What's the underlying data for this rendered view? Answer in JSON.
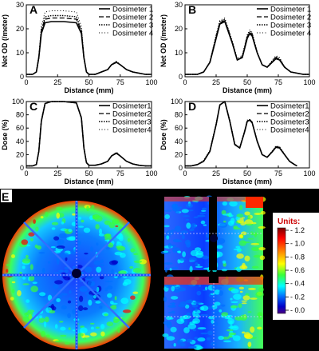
{
  "chart_data": [
    {
      "type": "line",
      "panel": "A",
      "xlabel": "Distance (mm)",
      "ylabel": "Net OD (/meter)",
      "xlim": [
        0,
        100
      ],
      "ylim": [
        0,
        30
      ],
      "xticks": [
        "0",
        "25",
        "50",
        "75",
        "100"
      ],
      "yticks": [
        "0",
        "10",
        "20",
        "30"
      ],
      "legend_position": "top-right",
      "series": [
        {
          "name": "Dosimeter 1",
          "style": "solid",
          "x": [
            0,
            5,
            8,
            10,
            12,
            15,
            20,
            30,
            40,
            44,
            46,
            48,
            50,
            55,
            60,
            65,
            68,
            72,
            75,
            80,
            85,
            90,
            95,
            100
          ],
          "y": [
            1,
            1,
            2,
            8,
            18,
            22.5,
            23,
            23,
            22.5,
            18,
            8,
            2,
            1,
            1,
            2,
            3,
            5,
            6,
            5,
            3,
            2,
            1.5,
            1,
            1
          ]
        },
        {
          "name": "Dosimeter 2",
          "style": "dashed",
          "x": [
            0,
            5,
            8,
            10,
            12,
            15,
            20,
            30,
            40,
            44,
            46,
            48,
            50,
            55,
            60,
            65,
            68,
            72,
            75,
            80,
            85,
            90,
            95,
            100
          ],
          "y": [
            1,
            1,
            2,
            8,
            19,
            24,
            24.5,
            24.5,
            24,
            19,
            8,
            2,
            1,
            1,
            2,
            3,
            5,
            6.2,
            5,
            3,
            2,
            1.5,
            1,
            1
          ]
        },
        {
          "name": "Dosimeter 3",
          "style": "dotted-dense",
          "x": [
            0,
            5,
            8,
            10,
            12,
            15,
            20,
            30,
            40,
            44,
            46,
            48,
            50,
            55,
            60,
            65,
            68,
            72,
            75,
            80,
            85,
            90,
            95,
            100
          ],
          "y": [
            1,
            1,
            2,
            8,
            19.5,
            25,
            25.5,
            25.5,
            25,
            19.5,
            8,
            2,
            1,
            1,
            2,
            3,
            5,
            6.3,
            5,
            3,
            2,
            1.5,
            1,
            1
          ]
        },
        {
          "name": "Dosimeter 4",
          "style": "dotted-sparse",
          "x": [
            0,
            5,
            8,
            10,
            12,
            15,
            20,
            30,
            40,
            44,
            46,
            48,
            50,
            55,
            60,
            65,
            68,
            72,
            75,
            80,
            85,
            90,
            95,
            100
          ],
          "y": [
            1,
            1,
            2,
            9,
            21,
            27,
            27.5,
            27.5,
            27,
            21,
            9,
            2,
            1,
            1,
            2,
            3,
            5,
            6.5,
            5,
            3,
            2,
            1.5,
            1,
            1
          ]
        }
      ]
    },
    {
      "type": "line",
      "panel": "B",
      "xlabel": "Distance (mm)",
      "ylabel": "Net OD (/meter)",
      "xlim": [
        0,
        100
      ],
      "ylim": [
        0,
        30
      ],
      "xticks": [
        "0",
        "25",
        "50",
        "75",
        "100"
      ],
      "yticks": [
        "0",
        "10",
        "20",
        "30"
      ],
      "legend_position": "top-right",
      "series": [
        {
          "name": "Dosimeter 1",
          "style": "solid",
          "x": [
            0,
            10,
            15,
            20,
            25,
            28,
            32,
            38,
            42,
            46,
            50,
            52,
            54,
            58,
            62,
            66,
            70,
            73,
            76,
            80,
            85,
            90,
            95,
            100
          ],
          "y": [
            1,
            1,
            2,
            6,
            16,
            22,
            23,
            14,
            7,
            8,
            16,
            18,
            17,
            10,
            5,
            4,
            6,
            7.5,
            7,
            4,
            2,
            1.5,
            1,
            1
          ]
        },
        {
          "name": "Dosimeter 2",
          "style": "dashed",
          "x": [
            0,
            10,
            15,
            20,
            25,
            28,
            32,
            38,
            42,
            46,
            50,
            52,
            54,
            58,
            62,
            66,
            70,
            73,
            76,
            80,
            85,
            90,
            95,
            100
          ],
          "y": [
            1,
            1,
            2,
            6,
            16.5,
            22.5,
            23.5,
            14,
            7,
            8,
            16.5,
            18.5,
            17.5,
            10,
            5,
            4,
            6.2,
            8,
            7.2,
            4,
            2,
            1.5,
            1,
            1
          ]
        },
        {
          "name": "Dosimeter 3",
          "style": "dotted-dense",
          "x": [
            0,
            10,
            15,
            20,
            25,
            28,
            32,
            38,
            42,
            46,
            50,
            52,
            54,
            58,
            62,
            66,
            70,
            73,
            76,
            80,
            85,
            90,
            95,
            100
          ],
          "y": [
            1,
            1,
            2,
            6,
            17,
            23,
            24,
            14.5,
            7,
            8.5,
            17,
            19,
            18,
            10,
            5,
            4,
            6.5,
            8.3,
            7.5,
            4,
            2,
            1.5,
            1,
            1
          ]
        },
        {
          "name": "Dosimeter 4",
          "style": "dotted-sparse",
          "x": [
            0,
            10,
            15,
            20,
            25,
            28,
            32,
            38,
            42,
            46,
            50,
            52,
            54,
            58,
            62,
            66,
            70,
            73,
            76,
            80,
            85,
            90,
            95,
            100
          ],
          "y": [
            1,
            1,
            2,
            6.5,
            17.5,
            23.5,
            24.5,
            15,
            7.5,
            9,
            17.5,
            19.5,
            18.5,
            10.5,
            5,
            4,
            6.8,
            8.8,
            8,
            4.2,
            2,
            1.5,
            1,
            1
          ]
        }
      ]
    },
    {
      "type": "line",
      "panel": "C",
      "xlabel": "Distance (mm)",
      "ylabel": "Dose (%)",
      "xlim": [
        0,
        100
      ],
      "ylim": [
        0,
        100
      ],
      "xticks": [
        "0",
        "25",
        "50",
        "75",
        "100"
      ],
      "yticks": [
        "0",
        "20",
        "40",
        "60",
        "80",
        "100"
      ],
      "legend_position": "top-right",
      "series": [
        {
          "name": "Dosimeter1",
          "style": "solid",
          "x": [
            0,
            5,
            8,
            10,
            12,
            15,
            20,
            30,
            40,
            44,
            46,
            48,
            50,
            55,
            60,
            65,
            68,
            72,
            75,
            80,
            85,
            90,
            95,
            100
          ],
          "y": [
            3,
            3,
            5,
            25,
            70,
            97,
            100,
            100,
            98,
            75,
            30,
            8,
            4,
            4,
            6,
            10,
            18,
            22,
            18,
            10,
            6,
            4,
            3,
            3
          ]
        },
        {
          "name": "Dosimeter2",
          "style": "dashed",
          "x": [
            0,
            5,
            8,
            10,
            12,
            15,
            20,
            30,
            40,
            44,
            46,
            48,
            50,
            55,
            60,
            65,
            68,
            72,
            75,
            80,
            85,
            90,
            95,
            100
          ],
          "y": [
            3,
            3,
            5,
            25,
            70,
            97,
            100,
            100,
            98,
            75,
            30,
            8,
            4,
            4,
            6,
            10,
            18,
            23,
            18,
            10,
            6,
            4,
            3,
            3
          ]
        },
        {
          "name": "Dosimeter3",
          "style": "dotted-dense",
          "x": [
            0,
            5,
            8,
            10,
            12,
            15,
            20,
            30,
            40,
            44,
            46,
            48,
            50,
            55,
            60,
            65,
            68,
            72,
            75,
            80,
            85,
            90,
            95,
            100
          ],
          "y": [
            3,
            3,
            5,
            26,
            71,
            97,
            100,
            100,
            98,
            76,
            31,
            8,
            4,
            4,
            6,
            10,
            18,
            22.5,
            18,
            10,
            6,
            4,
            3,
            3
          ]
        },
        {
          "name": "Dosimeter4",
          "style": "dotted-sparse",
          "x": [
            0,
            5,
            8,
            10,
            12,
            15,
            20,
            30,
            40,
            44,
            46,
            48,
            50,
            55,
            60,
            65,
            68,
            72,
            75,
            80,
            85,
            90,
            95,
            100
          ],
          "y": [
            3,
            3,
            5,
            26,
            72,
            97,
            100,
            100,
            98,
            76,
            32,
            8,
            4,
            4,
            6,
            10,
            18,
            24,
            18,
            10,
            6,
            4,
            3,
            3
          ]
        }
      ]
    },
    {
      "type": "line",
      "panel": "D",
      "xlabel": "Distance (mm)",
      "ylabel": "Dose (%)",
      "xlim": [
        0,
        100
      ],
      "ylim": [
        0,
        100
      ],
      "xticks": [
        "0",
        "25",
        "50",
        "75",
        "100"
      ],
      "yticks": [
        "0",
        "20",
        "40",
        "60",
        "80",
        "100"
      ],
      "legend_position": "top-right",
      "series": [
        {
          "name": "Dosimeter1",
          "style": "solid",
          "x": [
            0,
            5,
            10,
            15,
            20,
            25,
            28,
            32,
            36,
            40,
            44,
            48,
            50,
            52,
            54,
            58,
            62,
            66,
            70,
            73,
            76,
            80,
            84,
            88,
            90
          ],
          "y": [
            3,
            3,
            5,
            10,
            25,
            65,
            95,
            100,
            70,
            35,
            30,
            55,
            70,
            72,
            68,
            40,
            20,
            16,
            24,
            31,
            30,
            20,
            10,
            5,
            3
          ]
        },
        {
          "name": "Dosimeter2",
          "style": "dashed",
          "x": [
            0,
            5,
            10,
            15,
            20,
            25,
            28,
            32,
            36,
            40,
            44,
            48,
            50,
            52,
            54,
            58,
            62,
            66,
            70,
            73,
            76,
            80,
            84,
            88,
            90
          ],
          "y": [
            3,
            3,
            5,
            10,
            25,
            65,
            95,
            100,
            70,
            35,
            30,
            56,
            71,
            73,
            69,
            40,
            20,
            16,
            24,
            32,
            31,
            20,
            10,
            5,
            3
          ]
        },
        {
          "name": "Dosimeter3",
          "style": "dotted-dense",
          "x": [
            0,
            5,
            10,
            15,
            20,
            25,
            28,
            32,
            36,
            40,
            44,
            48,
            50,
            52,
            54,
            58,
            62,
            66,
            70,
            73,
            76,
            80,
            84,
            88,
            90
          ],
          "y": [
            3,
            3,
            5,
            11,
            26,
            66,
            95,
            100,
            71,
            36,
            30,
            56,
            71,
            72,
            68,
            41,
            20,
            16,
            25,
            32,
            31,
            20,
            10,
            5,
            3
          ]
        },
        {
          "name": "Dosimeter4",
          "style": "dotted-sparse",
          "x": [
            0,
            5,
            10,
            15,
            20,
            25,
            28,
            32,
            36,
            40,
            44,
            48,
            50,
            52,
            54,
            58,
            62,
            66,
            70,
            73,
            76,
            80,
            84,
            88,
            90
          ],
          "y": [
            3,
            3,
            5,
            11,
            26,
            67,
            95,
            100,
            72,
            36,
            31,
            57,
            72,
            73,
            69,
            41,
            21,
            16,
            25,
            33,
            32,
            21,
            10,
            5,
            3
          ]
        }
      ]
    },
    {
      "type": "heatmap",
      "panel": "E",
      "colorbar": {
        "title": "Units:",
        "ticks": [
          "1.2",
          "1.0",
          "0.8",
          "0.6",
          "0.4",
          "0.2",
          "0.0"
        ],
        "colors": [
          "#7a0000",
          "#ff0000",
          "#ff8a00",
          "#ffff00",
          "#39ff39",
          "#00ffff",
          "#0070ff",
          "#0000c8",
          "#4b0082"
        ]
      }
    }
  ]
}
